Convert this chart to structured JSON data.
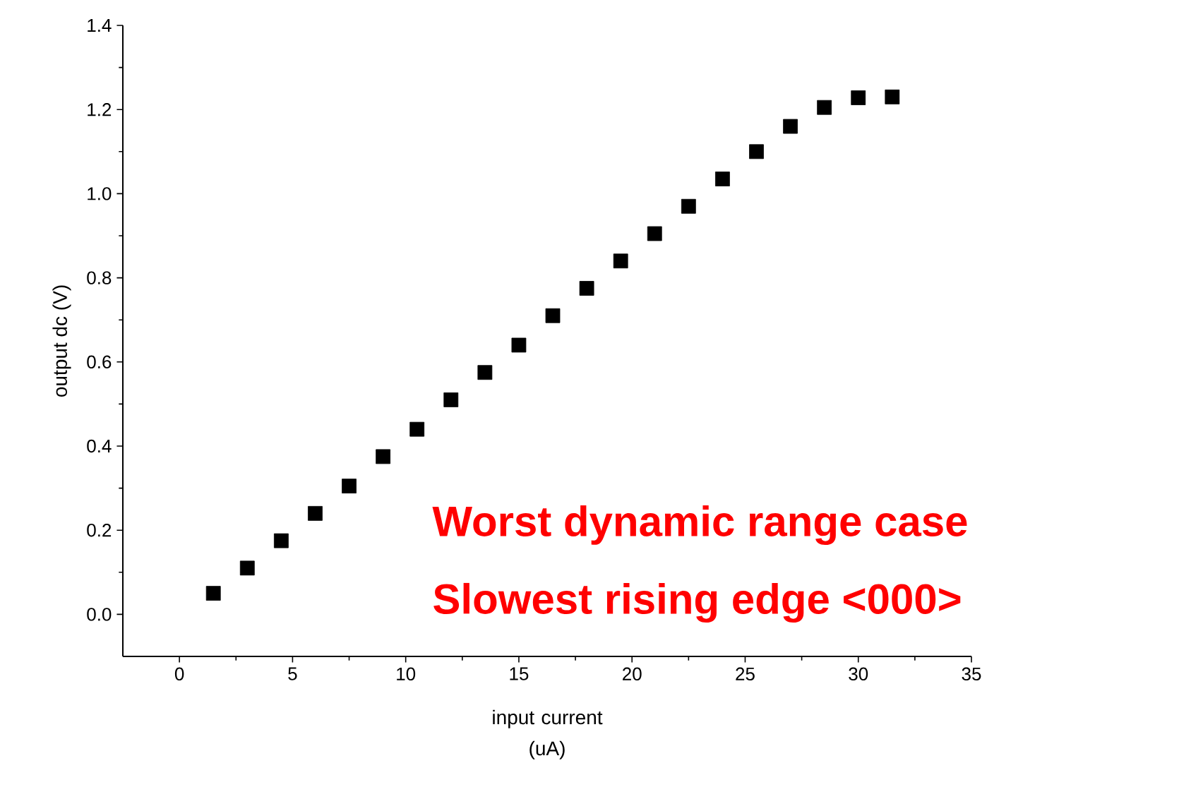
{
  "chart_data": {
    "type": "scatter",
    "xlabel": "input current (uA)",
    "ylabel": "output dc (V)",
    "x": [
      1.5,
      3,
      4.5,
      6,
      7.5,
      9,
      10.5,
      12,
      13.5,
      15,
      16.5,
      18,
      19.5,
      21,
      22.5,
      24,
      25.5,
      27,
      28.5,
      30,
      31.5
    ],
    "series": [
      {
        "color": "#000000",
        "values": [
          0.05,
          0.11,
          0.175,
          0.24,
          0.305,
          0.375,
          0.44,
          0.51,
          0.575,
          0.64,
          0.71,
          0.775,
          0.84,
          0.905,
          0.97,
          1.035,
          1.1,
          1.16,
          1.205,
          1.228,
          1.23
        ]
      }
    ],
    "marker": "square",
    "grid": false,
    "xlim": [
      -2.5,
      35
    ],
    "ylim": [
      -0.1,
      1.4
    ],
    "xticks": [
      0,
      5,
      10,
      15,
      20,
      25,
      30,
      35
    ],
    "yticks": [
      {
        "value": 0,
        "label": "0.0"
      },
      {
        "value": 0.2,
        "label": "0.2"
      },
      {
        "value": 0.4,
        "label": "0.4"
      },
      {
        "value": 0.6,
        "label": "0.6"
      },
      {
        "value": 0.8,
        "label": "0.8"
      },
      {
        "value": 1.0,
        "label": "1.0"
      },
      {
        "value": 1.2,
        "label": "1.2"
      },
      {
        "value": 1.4,
        "label": "1.4"
      }
    ],
    "annotations": [
      "Worst dynamic range case",
      "Slowest rising edge <000>"
    ]
  }
}
